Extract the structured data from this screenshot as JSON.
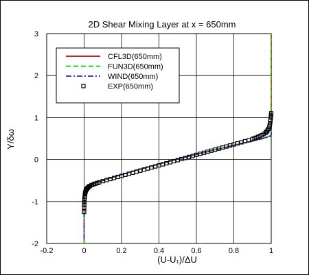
{
  "chart_data": {
    "type": "line",
    "title": "2D Shear Mixing Layer at x = 650mm",
    "xlabel": "(U-U₁)/ΔU",
    "ylabel": "Y/δω",
    "xlim": [
      -0.2,
      1.0
    ],
    "ylim": [
      -2,
      3
    ],
    "xticks": [
      -0.2,
      0,
      0.2,
      0.4,
      0.6,
      0.8,
      1
    ],
    "xtick_labels": [
      "-0.2",
      "0",
      "0.2",
      "0.4",
      "0.6",
      "0.8",
      "1"
    ],
    "yticks": [
      -2,
      -1,
      0,
      1,
      2,
      3
    ],
    "ytick_labels": [
      "-2",
      "-1",
      "0",
      "1",
      "2",
      "3"
    ],
    "grid": true,
    "legend_position": "top-left",
    "series": [
      {
        "name": "CFL3D(650mm)",
        "style": "solid",
        "color": "#cc0000",
        "x": [
          0,
          0,
          0.005,
          0.02,
          0.05,
          0.1,
          0.2,
          0.3,
          0.4,
          0.5,
          0.6,
          0.7,
          0.8,
          0.85,
          0.9,
          0.95,
          0.98,
          0.995,
          1.0,
          1.0
        ],
        "y": [
          -2.0,
          -0.9,
          -0.78,
          -0.66,
          -0.58,
          -0.5,
          -0.36,
          -0.23,
          -0.11,
          0.01,
          0.12,
          0.23,
          0.34,
          0.39,
          0.44,
          0.5,
          0.54,
          0.56,
          0.6,
          3.0
        ]
      },
      {
        "name": "FUN3D(650mm)",
        "style": "dashed",
        "color": "#00cc00",
        "x": [
          0,
          0,
          0.005,
          0.02,
          0.05,
          0.1,
          0.2,
          0.3,
          0.4,
          0.5,
          0.6,
          0.7,
          0.8,
          0.85,
          0.9,
          0.95,
          0.98,
          0.995,
          1.0,
          1.0
        ],
        "y": [
          -2.0,
          -0.92,
          -0.8,
          -0.67,
          -0.59,
          -0.5,
          -0.36,
          -0.23,
          -0.11,
          0.01,
          0.12,
          0.23,
          0.34,
          0.39,
          0.44,
          0.5,
          0.54,
          0.57,
          0.62,
          3.0
        ]
      },
      {
        "name": "WIND(650mm)",
        "style": "dashdot",
        "color": "#2222cc",
        "x": [
          0,
          0,
          0.005,
          0.02,
          0.05,
          0.1,
          0.2,
          0.3,
          0.4,
          0.5,
          0.6,
          0.7,
          0.8,
          0.85,
          0.9,
          0.95,
          0.98,
          0.995,
          1.0,
          1.0
        ],
        "y": [
          -1.9,
          -0.9,
          -0.78,
          -0.66,
          -0.58,
          -0.5,
          -0.36,
          -0.23,
          -0.11,
          0.01,
          0.12,
          0.23,
          0.34,
          0.39,
          0.44,
          0.49,
          0.53,
          0.55,
          0.58,
          1.1
        ]
      },
      {
        "name": "EXP(650mm)",
        "style": "markers",
        "color": "#000000",
        "marker": "square",
        "x": [
          0.0,
          0.0,
          0.001,
          0.001,
          0.002,
          0.002,
          0.003,
          0.004,
          0.005,
          0.006,
          0.008,
          0.01,
          0.013,
          0.016,
          0.02,
          0.025,
          0.03,
          0.04,
          0.05,
          0.06,
          0.07,
          0.08,
          0.1,
          0.12,
          0.14,
          0.16,
          0.18,
          0.2,
          0.22,
          0.24,
          0.26,
          0.28,
          0.3,
          0.32,
          0.34,
          0.36,
          0.38,
          0.4,
          0.42,
          0.44,
          0.46,
          0.48,
          0.5,
          0.52,
          0.54,
          0.56,
          0.58,
          0.6,
          0.62,
          0.64,
          0.66,
          0.68,
          0.7,
          0.72,
          0.74,
          0.76,
          0.78,
          0.8,
          0.82,
          0.84,
          0.86,
          0.88,
          0.9,
          0.91,
          0.92,
          0.93,
          0.94,
          0.95,
          0.96,
          0.97,
          0.975,
          0.98,
          0.985,
          0.99,
          0.992,
          0.994,
          0.996,
          0.998,
          0.999,
          1.0
        ],
        "y": [
          -1.25,
          -1.15,
          -1.08,
          -1.02,
          -0.97,
          -0.93,
          -0.89,
          -0.85,
          -0.82,
          -0.79,
          -0.76,
          -0.73,
          -0.71,
          -0.69,
          -0.67,
          -0.65,
          -0.63,
          -0.61,
          -0.59,
          -0.575,
          -0.56,
          -0.545,
          -0.515,
          -0.49,
          -0.465,
          -0.44,
          -0.415,
          -0.39,
          -0.365,
          -0.34,
          -0.315,
          -0.29,
          -0.265,
          -0.24,
          -0.215,
          -0.19,
          -0.165,
          -0.14,
          -0.115,
          -0.09,
          -0.065,
          -0.04,
          -0.015,
          0.01,
          0.035,
          0.06,
          0.085,
          0.11,
          0.135,
          0.16,
          0.185,
          0.21,
          0.235,
          0.26,
          0.285,
          0.31,
          0.335,
          0.36,
          0.385,
          0.41,
          0.435,
          0.46,
          0.49,
          0.505,
          0.52,
          0.54,
          0.56,
          0.58,
          0.61,
          0.64,
          0.66,
          0.69,
          0.73,
          0.78,
          0.82,
          0.87,
          0.93,
          1.0,
          1.05,
          1.1
        ]
      }
    ]
  }
}
